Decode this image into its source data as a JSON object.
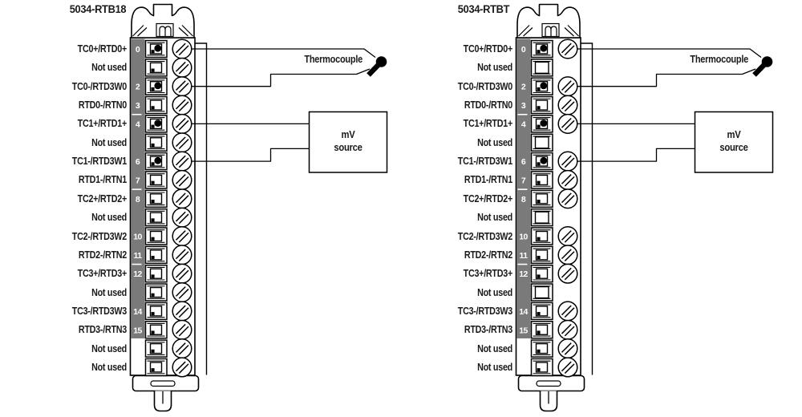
{
  "modules": [
    {
      "title": "5034-RTB18",
      "missing_screws": [],
      "plain_connectors": []
    },
    {
      "title": "5034-RTBT",
      "missing_screws": [
        1,
        5,
        9,
        13
      ],
      "plain_connectors": [
        1,
        5,
        9,
        13
      ]
    }
  ],
  "rows": [
    {
      "num": "0",
      "label": "TC0+/RTD0+",
      "wired": true,
      "separator_after": false
    },
    {
      "num": "",
      "label": "Not used",
      "wired": false,
      "separator_after": false
    },
    {
      "num": "2",
      "label": "TC0-/RTD3W0",
      "wired": true,
      "separator_after": false
    },
    {
      "num": "3",
      "label": "RTD0-/RTN0",
      "wired": false,
      "separator_after": true
    },
    {
      "num": "4",
      "label": "TC1+/RTD1+",
      "wired": true,
      "separator_after": false
    },
    {
      "num": "",
      "label": "Not used",
      "wired": false,
      "separator_after": false
    },
    {
      "num": "6",
      "label": "TC1-/RTD3W1",
      "wired": true,
      "separator_after": false
    },
    {
      "num": "7",
      "label": "RTD1-/RTN1",
      "wired": false,
      "separator_after": true
    },
    {
      "num": "8",
      "label": "TC2+/RTD2+",
      "wired": false,
      "separator_after": false
    },
    {
      "num": "",
      "label": "Not used",
      "wired": false,
      "separator_after": false
    },
    {
      "num": "10",
      "label": "TC2-/RTD3W2",
      "wired": false,
      "separator_after": false
    },
    {
      "num": "11",
      "label": "RTD2-/RTN2",
      "wired": false,
      "separator_after": true
    },
    {
      "num": "12",
      "label": "TC3+/RTD3+",
      "wired": false,
      "separator_after": false
    },
    {
      "num": "",
      "label": "Not used",
      "wired": false,
      "separator_after": false
    },
    {
      "num": "14",
      "label": "TC3-/RTD3W3",
      "wired": false,
      "separator_after": false
    },
    {
      "num": "15",
      "label": "RTD3-/RTN3",
      "wired": false,
      "separator_after": false
    },
    {
      "num": "",
      "label": "Not used",
      "wired": false,
      "separator_after": false
    },
    {
      "num": "",
      "label": "Not used",
      "wired": false,
      "separator_after": false
    }
  ],
  "annotations": {
    "thermocouple": "Thermocouple",
    "mv_line1": "mV",
    "mv_line2": "source"
  },
  "wiring": [
    {
      "terminals": [
        "0",
        "2"
      ],
      "device": "Thermocouple"
    },
    {
      "terminals": [
        "4",
        "6"
      ],
      "device": "mV source"
    }
  ],
  "colors": {
    "line": "#000000",
    "strip": "#7a7a7a",
    "text": "#1a1a1a",
    "wire": "#000000"
  }
}
